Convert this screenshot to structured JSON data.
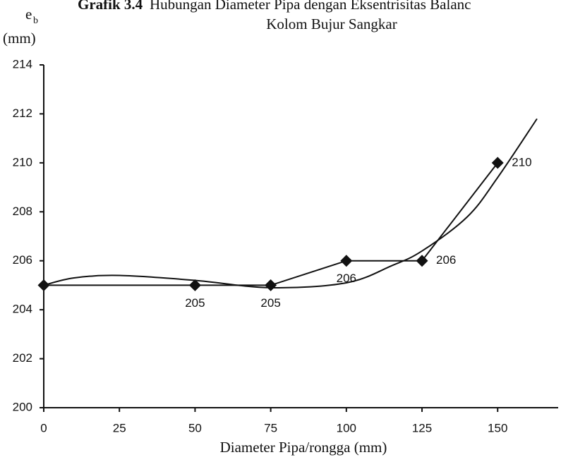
{
  "chart_data": {
    "type": "line",
    "title_prefix": "Grafik 3.4",
    "title": "Hubungan Diameter Pipa dengan Eksentrisitas Balanc",
    "title_line2": "Kolom Bujur Sangkar",
    "ylabel_symbol": "e",
    "ylabel_subscript": "b",
    "ylabel_unit": "(mm)",
    "xlabel": "Diameter Pipa/rongga (mm)",
    "x": [
      0,
      50,
      75,
      100,
      125,
      150
    ],
    "series": [
      {
        "color": "#111111",
        "values": [
          205,
          205,
          205,
          206,
          206,
          210
        ],
        "value_labels": [
          null,
          "205",
          "205",
          "206",
          "206",
          "210"
        ]
      }
    ],
    "trendline": {
      "color": "#111111",
      "x": [
        0,
        10,
        25,
        50,
        75,
        100,
        115,
        125,
        140,
        150,
        163
      ],
      "values": [
        205,
        205.3,
        205.4,
        205.2,
        204.9,
        205.1,
        205.8,
        206.4,
        207.8,
        209.4,
        211.8
      ]
    },
    "xlim": [
      0,
      170
    ],
    "ylim": [
      200,
      214
    ],
    "xticks": [
      0,
      25,
      50,
      75,
      100,
      125,
      150
    ],
    "yticks": [
      200,
      202,
      204,
      206,
      208,
      210,
      212,
      214
    ],
    "grid": false
  }
}
